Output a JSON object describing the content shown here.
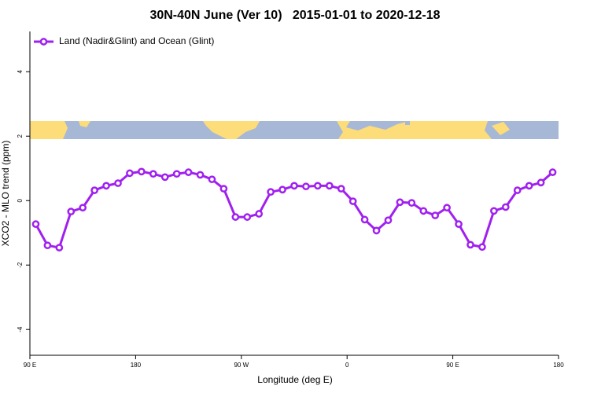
{
  "chart_data": {
    "type": "line",
    "title": "30N-40N June (Ver 10)   2015-01-01 to 2020-12-18",
    "x_label": "Longitude (deg E)",
    "y_label": "XCO2 - MLO trend (ppm)",
    "x": [
      95,
      105,
      115,
      125,
      135,
      145,
      155,
      165,
      175,
      185,
      195,
      205,
      215,
      225,
      235,
      245,
      255,
      265,
      275,
      285,
      295,
      305,
      315,
      325,
      335,
      345,
      355,
      365,
      375,
      385,
      395,
      405,
      415,
      425,
      435,
      445,
      455,
      465,
      475,
      485,
      495,
      505,
      515,
      525,
      535
    ],
    "series": [
      {
        "name": "Land (Nadir&Glint) and Ocean (Glint)",
        "color": "#a020f0",
        "values": [
          -0.73,
          -1.39,
          -1.46,
          -0.34,
          -0.22,
          0.32,
          0.46,
          0.54,
          0.85,
          0.9,
          0.83,
          0.73,
          0.83,
          0.88,
          0.8,
          0.66,
          0.37,
          -0.51,
          -0.51,
          -0.41,
          0.27,
          0.34,
          0.46,
          0.44,
          0.46,
          0.46,
          0.37,
          -0.02,
          -0.59,
          -0.93,
          -0.61,
          -0.05,
          -0.07,
          -0.32,
          -0.46,
          -0.22,
          -0.73,
          -1.37,
          -1.44,
          -0.32,
          -0.2,
          0.32,
          0.46,
          0.56,
          0.88
        ]
      }
    ],
    "xlim": [
      90,
      540
    ],
    "xticks": [
      {
        "value": 90,
        "label": "90 E"
      },
      180,
      {
        "value": 270,
        "label": "90 W"
      },
      {
        "value": 360,
        "label": "0"
      },
      {
        "value": 450,
        "label": "90 E"
      },
      {
        "value": 540,
        "label": "180"
      }
    ],
    "ylim": [
      -4.8,
      5.25
    ],
    "yticks": [
      -4,
      -2,
      0,
      2,
      4
    ],
    "legend": "top-left"
  }
}
